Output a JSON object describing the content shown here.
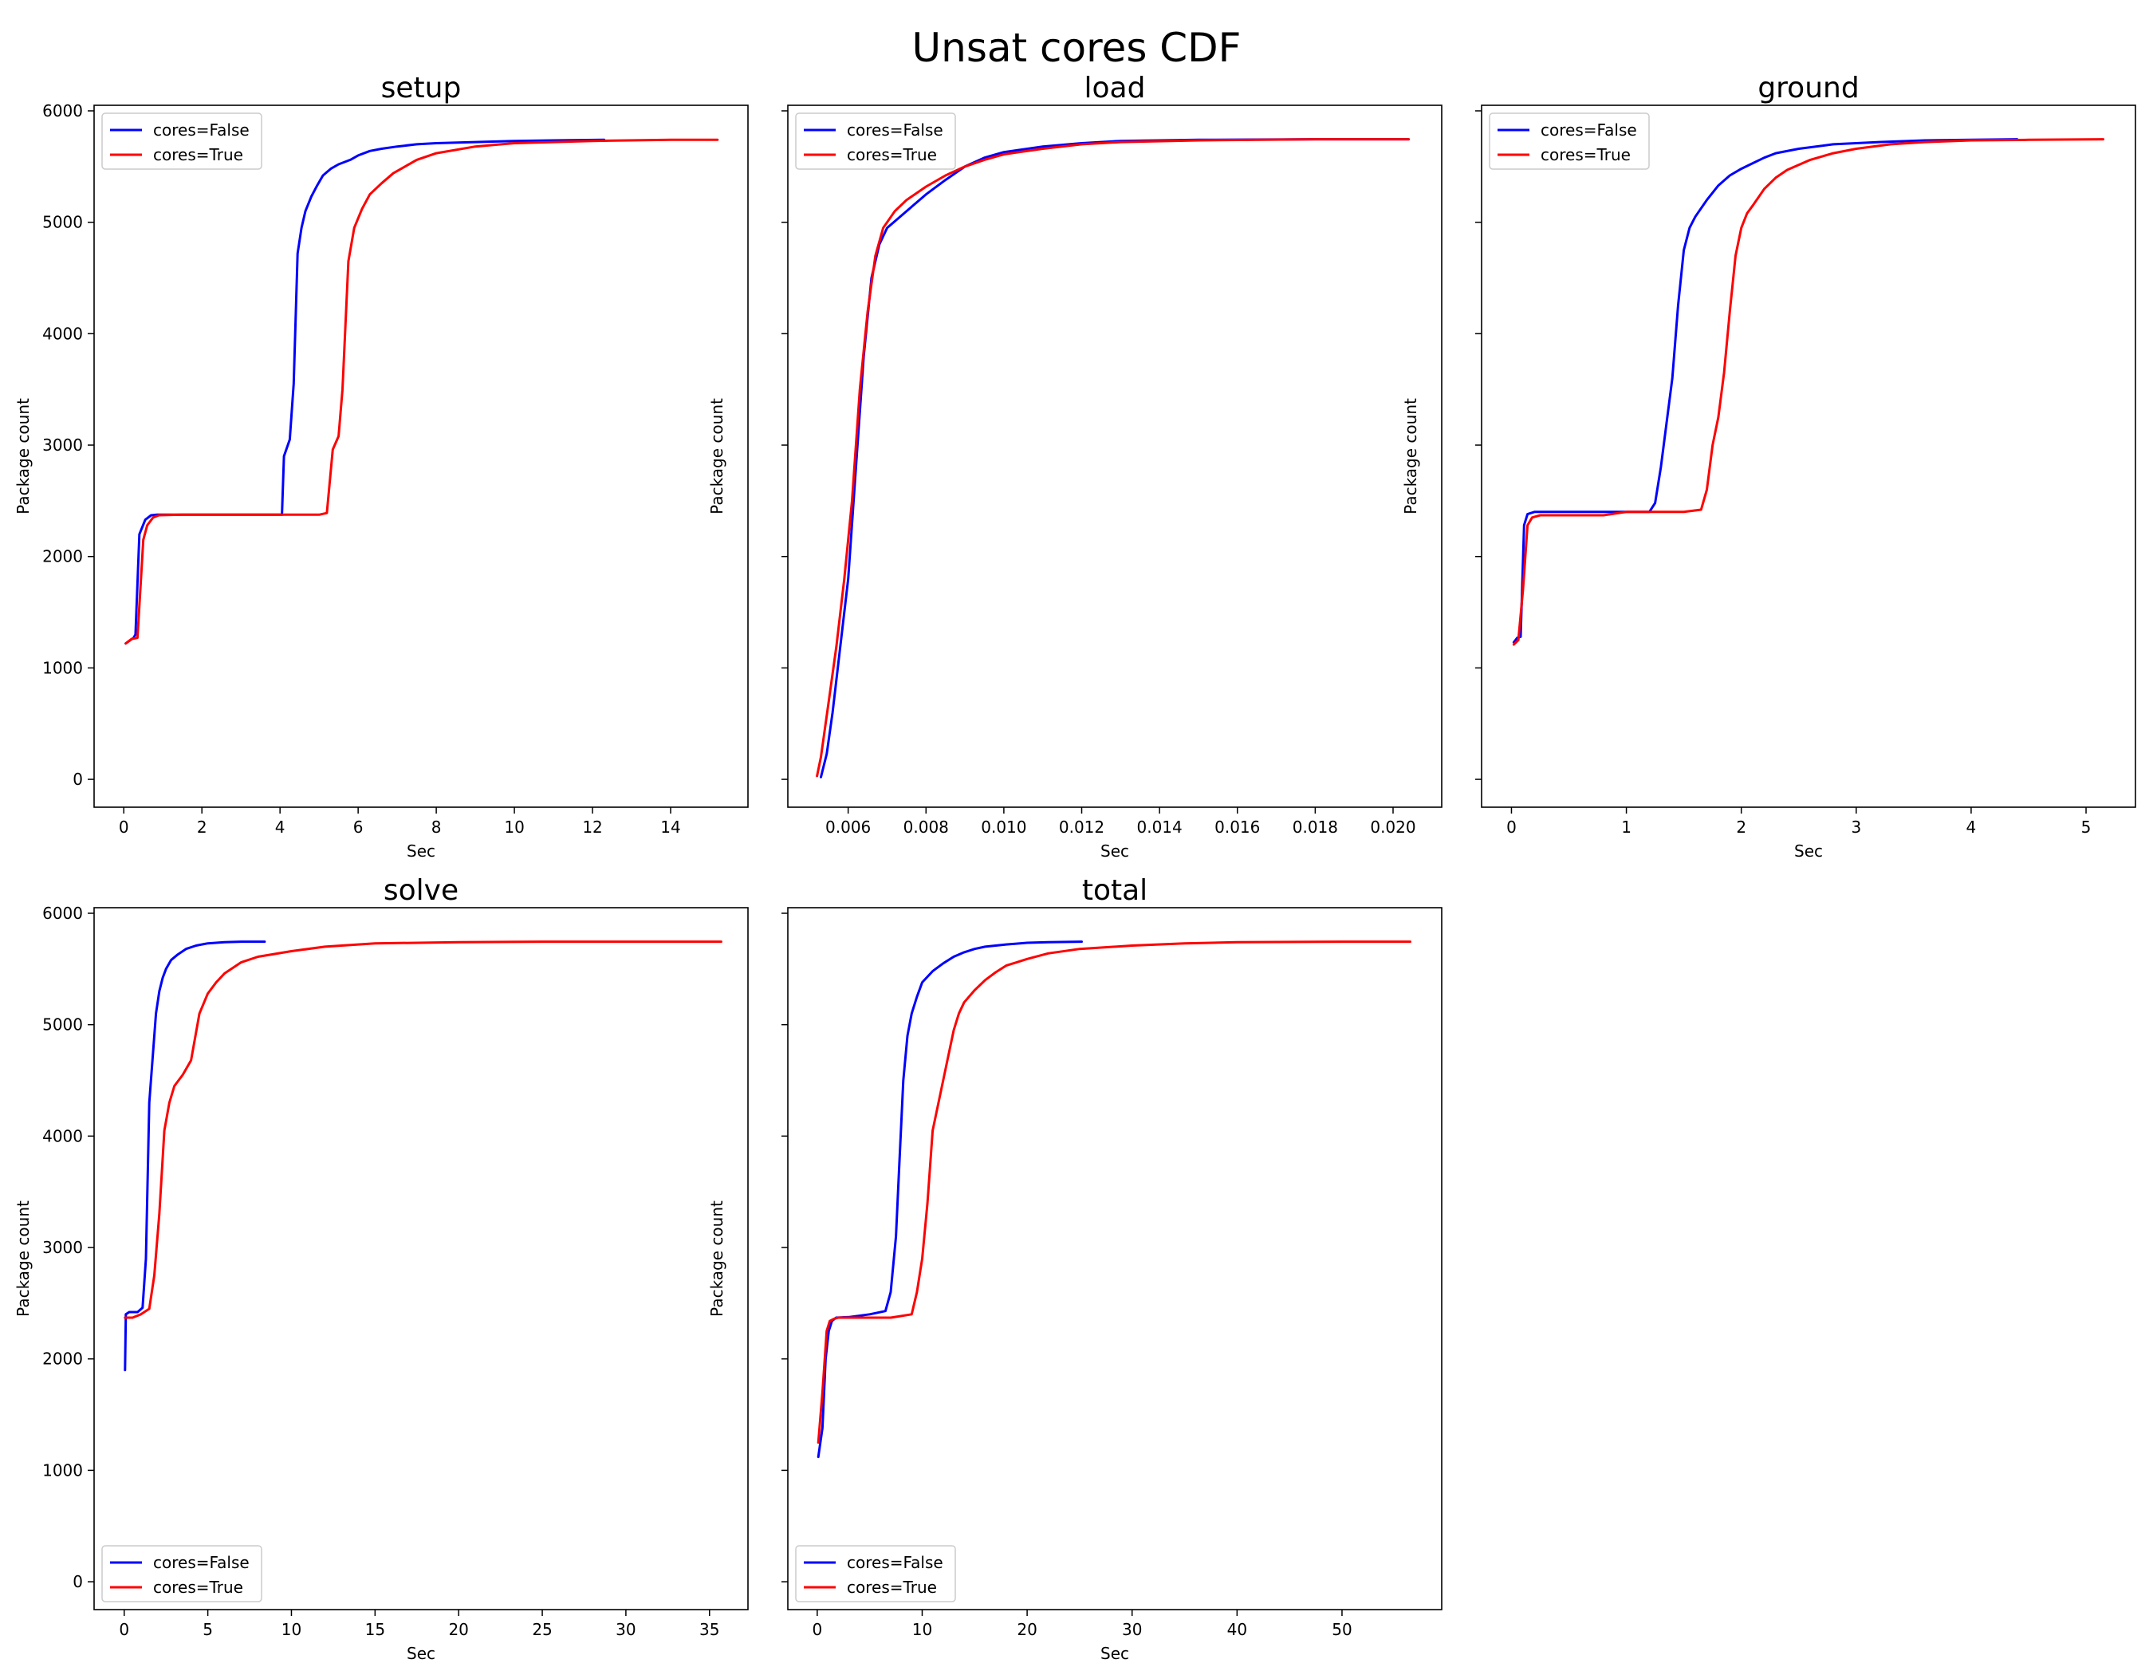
{
  "figure_title": "Unsat cores CDF",
  "colors": {
    "cores_false": "#0000ff",
    "cores_true": "#ff0000"
  },
  "chart_data": [
    {
      "type": "line",
      "title": "setup",
      "xlabel": "Sec",
      "ylabel": "Package count",
      "xlim": [
        -0.76,
        15.98
      ],
      "ylim": [
        -250,
        6050
      ],
      "xticks": [
        0,
        2,
        4,
        6,
        8,
        10,
        12,
        14
      ],
      "xtick_labels": [
        "0",
        "2",
        "4",
        "6",
        "8",
        "10",
        "12",
        "14"
      ],
      "yticks": [
        0,
        1000,
        2000,
        3000,
        4000,
        5000,
        6000
      ],
      "ytick_labels": [
        "0",
        "1000",
        "2000",
        "3000",
        "4000",
        "5000",
        "6000"
      ],
      "legend": {
        "loc": "upper-left",
        "entries": [
          "cores=False",
          "cores=True"
        ]
      },
      "series": [
        {
          "name": "cores=False",
          "color": "#0000ff",
          "x": [
            0.05,
            0.25,
            0.3,
            0.4,
            0.55,
            0.7,
            0.85,
            1.5,
            3,
            4.05,
            4.1,
            4.25,
            4.35,
            4.45,
            4.55,
            4.65,
            4.8,
            4.95,
            5.1,
            5.3,
            5.5,
            5.8,
            6.0,
            6.3,
            6.6,
            7.0,
            7.5,
            8.0,
            9.0,
            10.0,
            11.0,
            12.3
          ],
          "y": [
            1220,
            1270,
            1300,
            2200,
            2330,
            2370,
            2375,
            2375,
            2375,
            2375,
            2900,
            3050,
            3550,
            4720,
            4950,
            5100,
            5230,
            5330,
            5420,
            5480,
            5520,
            5560,
            5600,
            5640,
            5660,
            5680,
            5700,
            5710,
            5720,
            5730,
            5735,
            5740
          ]
        },
        {
          "name": "cores=True",
          "color": "#ff0000",
          "x": [
            0.05,
            0.2,
            0.35,
            0.5,
            0.6,
            0.75,
            0.9,
            1.5,
            3,
            5.0,
            5.2,
            5.35,
            5.5,
            5.6,
            5.75,
            5.9,
            6.1,
            6.3,
            6.6,
            6.9,
            7.2,
            7.5,
            8.0,
            9.0,
            10.0,
            12.0,
            14.0,
            15.2
          ],
          "y": [
            1220,
            1260,
            1270,
            2150,
            2280,
            2350,
            2370,
            2375,
            2375,
            2375,
            2390,
            2960,
            3080,
            3500,
            4650,
            4950,
            5120,
            5250,
            5350,
            5440,
            5500,
            5560,
            5620,
            5680,
            5710,
            5730,
            5740,
            5740
          ]
        }
      ]
    },
    {
      "type": "line",
      "title": "load",
      "xlabel": "Sec",
      "ylabel": "Package count",
      "xlim": [
        0.00445,
        0.02125
      ],
      "ylim": [
        -250,
        6050
      ],
      "xticks": [
        0.006,
        0.008,
        0.01,
        0.012,
        0.014,
        0.016,
        0.018,
        0.02
      ],
      "xtick_labels": [
        "0.006",
        "0.008",
        "0.010",
        "0.012",
        "0.014",
        "0.016",
        "0.018",
        "0.020"
      ],
      "yticks": [
        0,
        1000,
        2000,
        3000,
        4000,
        5000,
        6000
      ],
      "ytick_labels": [
        "",
        "",
        "",
        "",
        "",
        "",
        ""
      ],
      "legend": {
        "loc": "upper-left",
        "entries": [
          "cores=False",
          "cores=True"
        ]
      },
      "series": [
        {
          "name": "cores=False",
          "color": "#0000ff",
          "x": [
            0.0053,
            0.00545,
            0.0056,
            0.0058,
            0.006,
            0.0062,
            0.0064,
            0.0066,
            0.0068,
            0.007,
            0.0075,
            0.008,
            0.0085,
            0.009,
            0.0095,
            0.01,
            0.011,
            0.012,
            0.013,
            0.015,
            0.018,
            0.0204
          ],
          "y": [
            20,
            230,
            600,
            1200,
            1800,
            2800,
            3800,
            4500,
            4800,
            4950,
            5100,
            5250,
            5380,
            5500,
            5580,
            5630,
            5680,
            5710,
            5730,
            5740,
            5745,
            5745
          ]
        },
        {
          "name": "cores=True",
          "color": "#ff0000",
          "x": [
            0.0052,
            0.0053,
            0.0055,
            0.0057,
            0.0059,
            0.0061,
            0.0063,
            0.0065,
            0.0067,
            0.0069,
            0.0072,
            0.0075,
            0.008,
            0.0085,
            0.009,
            0.0095,
            0.01,
            0.011,
            0.012,
            0.013,
            0.015,
            0.018,
            0.0204
          ],
          "y": [
            30,
            200,
            700,
            1200,
            1800,
            2500,
            3500,
            4200,
            4700,
            4950,
            5100,
            5200,
            5320,
            5420,
            5500,
            5560,
            5610,
            5660,
            5700,
            5720,
            5735,
            5745,
            5745
          ]
        }
      ]
    },
    {
      "type": "line",
      "title": "ground",
      "xlabel": "Sec",
      "ylabel": "Package count",
      "xlim": [
        -0.26,
        5.43
      ],
      "ylim": [
        -250,
        6050
      ],
      "xticks": [
        0,
        1,
        2,
        3,
        4,
        5
      ],
      "xtick_labels": [
        "0",
        "1",
        "2",
        "3",
        "4",
        "5"
      ],
      "yticks": [
        0,
        1000,
        2000,
        3000,
        4000,
        5000,
        6000
      ],
      "ytick_labels": [
        "",
        "",
        "",
        "",
        "",
        "",
        ""
      ],
      "legend": {
        "loc": "upper-left",
        "entries": [
          "cores=False",
          "cores=True"
        ]
      },
      "series": [
        {
          "name": "cores=False",
          "color": "#0000ff",
          "x": [
            0.02,
            0.05,
            0.08,
            0.11,
            0.14,
            0.2,
            0.5,
            1.0,
            1.2,
            1.25,
            1.3,
            1.35,
            1.4,
            1.45,
            1.5,
            1.55,
            1.6,
            1.7,
            1.8,
            1.9,
            2.0,
            2.1,
            2.2,
            2.3,
            2.5,
            2.8,
            3.2,
            3.6,
            4.0,
            4.4
          ],
          "y": [
            1230,
            1270,
            1280,
            2280,
            2380,
            2400,
            2400,
            2400,
            2400,
            2480,
            2800,
            3200,
            3600,
            4250,
            4750,
            4950,
            5050,
            5200,
            5330,
            5420,
            5480,
            5530,
            5580,
            5620,
            5660,
            5700,
            5720,
            5735,
            5740,
            5745
          ]
        },
        {
          "name": "cores=True",
          "color": "#ff0000",
          "x": [
            0.02,
            0.06,
            0.1,
            0.14,
            0.18,
            0.25,
            0.5,
            0.8,
            1.0,
            1.5,
            1.65,
            1.7,
            1.75,
            1.8,
            1.85,
            1.9,
            1.95,
            2.0,
            2.05,
            2.1,
            2.2,
            2.3,
            2.4,
            2.6,
            2.8,
            3.0,
            3.3,
            3.6,
            4.0,
            4.5,
            5.15
          ],
          "y": [
            1210,
            1250,
            1700,
            2280,
            2350,
            2370,
            2370,
            2370,
            2400,
            2400,
            2420,
            2600,
            3000,
            3250,
            3650,
            4200,
            4700,
            4950,
            5080,
            5150,
            5300,
            5400,
            5470,
            5560,
            5620,
            5660,
            5700,
            5720,
            5735,
            5740,
            5745
          ]
        }
      ]
    },
    {
      "type": "line",
      "title": "solve",
      "xlabel": "Sec",
      "ylabel": "Package count",
      "xlim": [
        -1.8,
        37.3
      ],
      "ylim": [
        -250,
        6050
      ],
      "xticks": [
        0,
        5,
        10,
        15,
        20,
        25,
        30,
        35
      ],
      "xtick_labels": [
        "0",
        "5",
        "10",
        "15",
        "20",
        "25",
        "30",
        "35"
      ],
      "yticks": [
        0,
        1000,
        2000,
        3000,
        4000,
        5000,
        6000
      ],
      "ytick_labels": [
        "0",
        "1000",
        "2000",
        "3000",
        "4000",
        "5000",
        "6000"
      ],
      "legend": {
        "loc": "lower-left",
        "entries": [
          "cores=False",
          "cores=True"
        ]
      },
      "series": [
        {
          "name": "cores=False",
          "color": "#0000ff",
          "x": [
            0.05,
            0.1,
            0.3,
            0.8,
            1.1,
            1.3,
            1.5,
            1.7,
            1.9,
            2.1,
            2.3,
            2.5,
            2.8,
            3.2,
            3.7,
            4.3,
            5.0,
            6.0,
            7.0,
            8.4
          ],
          "y": [
            1900,
            2400,
            2420,
            2420,
            2460,
            2900,
            4300,
            4700,
            5100,
            5300,
            5420,
            5500,
            5580,
            5630,
            5680,
            5710,
            5730,
            5740,
            5745,
            5745
          ]
        },
        {
          "name": "cores=True",
          "color": "#ff0000",
          "x": [
            0.05,
            0.5,
            1.0,
            1.5,
            1.8,
            2.1,
            2.4,
            2.7,
            3.0,
            3.5,
            4.0,
            4.5,
            5.0,
            5.5,
            6.0,
            7.0,
            8.0,
            10.0,
            12.0,
            15.0,
            20.0,
            25.0,
            30.0,
            35.7
          ],
          "y": [
            2370,
            2370,
            2400,
            2450,
            2750,
            3300,
            4050,
            4300,
            4450,
            4550,
            4680,
            5100,
            5280,
            5380,
            5460,
            5560,
            5610,
            5660,
            5700,
            5730,
            5740,
            5745,
            5745,
            5745
          ]
        }
      ]
    },
    {
      "type": "line",
      "title": "total",
      "xlabel": "Sec",
      "ylabel": "Package count",
      "xlim": [
        -2.8,
        59.5
      ],
      "ylim": [
        -250,
        6050
      ],
      "xticks": [
        0,
        10,
        20,
        30,
        40,
        50
      ],
      "xtick_labels": [
        "0",
        "10",
        "20",
        "30",
        "40",
        "50"
      ],
      "yticks": [
        0,
        1000,
        2000,
        3000,
        4000,
        5000,
        6000
      ],
      "ytick_labels": [
        "",
        "",
        "",
        "",
        "",
        "",
        ""
      ],
      "legend": {
        "loc": "lower-left",
        "entries": [
          "cores=False",
          "cores=True"
        ]
      },
      "series": [
        {
          "name": "cores=False",
          "color": "#0000ff",
          "x": [
            0.1,
            0.5,
            0.8,
            1.1,
            1.4,
            1.8,
            3.0,
            5.0,
            6.5,
            7.0,
            7.5,
            7.8,
            8.2,
            8.6,
            9.0,
            9.5,
            10.0,
            11.0,
            12.0,
            13.0,
            14.0,
            15.0,
            16.0,
            18.0,
            20.0,
            22.0,
            25.2
          ],
          "y": [
            1120,
            1380,
            2000,
            2250,
            2340,
            2370,
            2375,
            2400,
            2430,
            2600,
            3100,
            3700,
            4500,
            4900,
            5100,
            5250,
            5380,
            5480,
            5550,
            5610,
            5650,
            5680,
            5700,
            5720,
            5735,
            5740,
            5745
          ]
        },
        {
          "name": "cores=True",
          "color": "#ff0000",
          "x": [
            0.1,
            0.5,
            0.9,
            1.2,
            1.6,
            2.0,
            4.0,
            7.0,
            9.0,
            9.5,
            10.0,
            10.5,
            11.0,
            12.0,
            13.0,
            13.5,
            14.0,
            15.0,
            16.0,
            17.0,
            18.0,
            20.0,
            22.0,
            25.0,
            30.0,
            35.0,
            40.0,
            50.0,
            56.5
          ],
          "y": [
            1250,
            1700,
            2250,
            2340,
            2360,
            2370,
            2370,
            2370,
            2400,
            2600,
            2900,
            3400,
            4050,
            4500,
            4950,
            5100,
            5200,
            5310,
            5400,
            5470,
            5530,
            5590,
            5640,
            5680,
            5710,
            5730,
            5740,
            5745,
            5745
          ]
        }
      ]
    }
  ]
}
